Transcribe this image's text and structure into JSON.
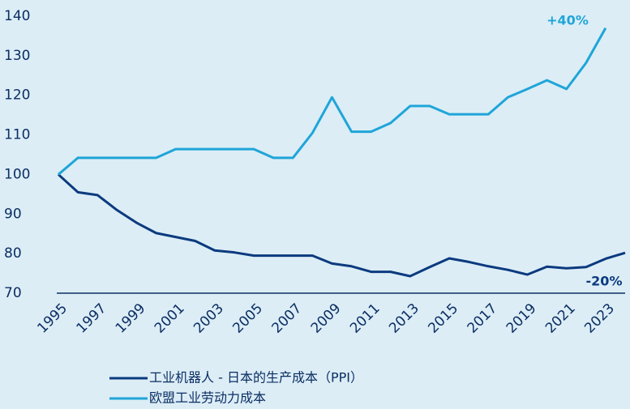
{
  "chart_data": {
    "type": "line",
    "x": [
      1995,
      1996,
      1997,
      1998,
      1999,
      2000,
      2001,
      2002,
      2003,
      2004,
      2005,
      2006,
      2007,
      2008,
      2009,
      2010,
      2011,
      2012,
      2013,
      2014,
      2015,
      2016,
      2017,
      2018,
      2019,
      2020,
      2021,
      2022,
      2023,
      2024
    ],
    "series": [
      {
        "name": "工业机器人 - 日本的生产成本（PPI）",
        "color": "#0b3a7e",
        "values": [
          100,
          95.5,
          94.8,
          91,
          87.8,
          85.2,
          84.2,
          83.2,
          80.8,
          80.3,
          79.5,
          79.5,
          79.5,
          79.5,
          77.5,
          76.8,
          75.4,
          75.4,
          74.3,
          76.6,
          78.8,
          77.9,
          76.8,
          75.9,
          74.7,
          76.7,
          76.3,
          76.6,
          78.7,
          80.2
        ]
      },
      {
        "name": "欧盟工业劳动力成本",
        "color": "#1fa5d8",
        "values": [
          100,
          104.2,
          104.2,
          104.2,
          104.2,
          104.2,
          106.4,
          106.4,
          106.4,
          106.4,
          106.4,
          104.2,
          104.2,
          110.5,
          119.5,
          110.8,
          110.8,
          113,
          117.3,
          117.3,
          115.2,
          115.2,
          115.2,
          119.5,
          121.6,
          123.8,
          121.6,
          128.2,
          137,
          null
        ]
      }
    ],
    "annotations": [
      "+40%",
      "-20%"
    ],
    "xlim": [
      1995,
      2024
    ],
    "xticks": [
      1995,
      1997,
      1999,
      2001,
      2003,
      2005,
      2007,
      2009,
      2011,
      2013,
      2015,
      2017,
      2019,
      2021,
      2023
    ],
    "ylim": [
      70,
      140
    ],
    "yticks": [
      70,
      80,
      90,
      100,
      110,
      120,
      130,
      140
    ],
    "grid": false
  }
}
